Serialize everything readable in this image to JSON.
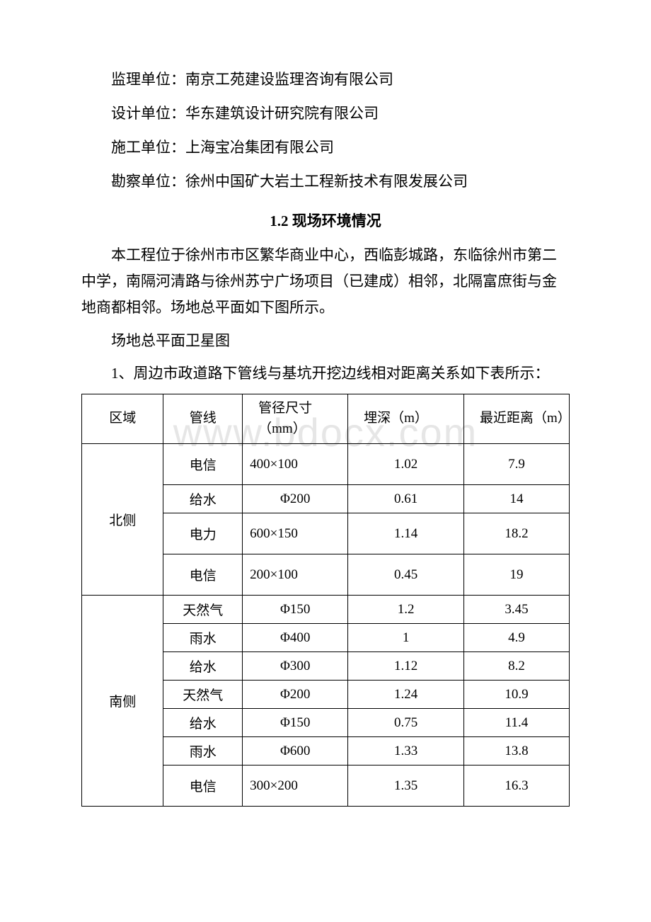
{
  "info": {
    "supervisor": "监理单位：南京工苑建设监理咨询有限公司",
    "designer": "设计单位：华东建筑设计研究院有限公司",
    "constructor": "施工单位：上海宝冶集团有限公司",
    "surveyor": "勘察单位：徐州中国矿大岩土工程新技术有限发展公司"
  },
  "section_title": "1.2 现场环境情况",
  "paragraphs": {
    "p1": "本工程位于徐州市市区繁华商业中心，西临彭城路，东临徐州市第二中学，南隔河清路与徐州苏宁广场项目（已建成）相邻，北隔富庶街与金地商都相邻。场地总平面如下图所示。",
    "p2": "场地总平面卫星图",
    "p3": "1、周边市政道路下管线与基坑开挖边线相对距离关系如下表所示："
  },
  "watermark": "www.bdocx.com",
  "table": {
    "headers": {
      "region": "区域",
      "pipe": "管线",
      "diameter": "管径尺寸（mm）",
      "depth": "埋深（m）",
      "distance": "最近距离（m）"
    },
    "regions": [
      {
        "name": "北侧",
        "rows": [
          {
            "pipe": "电信",
            "diameter": "400×100",
            "diameter_align": "left",
            "depth": "1.02",
            "distance": "7.9",
            "tall": true
          },
          {
            "pipe": "给水",
            "diameter": "Φ200",
            "diameter_align": "center",
            "depth": "0.61",
            "distance": "14",
            "tall": false
          },
          {
            "pipe": "电力",
            "diameter": "600×150",
            "diameter_align": "left",
            "depth": "1.14",
            "distance": "18.2",
            "tall": true
          },
          {
            "pipe": "电信",
            "diameter": "200×100",
            "diameter_align": "left",
            "depth": "0.45",
            "distance": "19",
            "tall": true
          }
        ]
      },
      {
        "name": "南侧",
        "rows": [
          {
            "pipe": "天然气",
            "diameter": "Φ150",
            "diameter_align": "center",
            "depth": "1.2",
            "distance": "3.45",
            "tall": false
          },
          {
            "pipe": "雨水",
            "diameter": "Φ400",
            "diameter_align": "center",
            "depth": "1",
            "distance": "4.9",
            "tall": false
          },
          {
            "pipe": "给水",
            "diameter": "Φ300",
            "diameter_align": "center",
            "depth": "1.12",
            "distance": "8.2",
            "tall": false
          },
          {
            "pipe": "天然气",
            "diameter": "Φ200",
            "diameter_align": "center",
            "depth": "1.24",
            "distance": "10.9",
            "tall": false
          },
          {
            "pipe": "给水",
            "diameter": "Φ150",
            "diameter_align": "center",
            "depth": "0.75",
            "distance": "11.4",
            "tall": false
          },
          {
            "pipe": "雨水",
            "diameter": "Φ600",
            "diameter_align": "center",
            "depth": "1.33",
            "distance": "13.8",
            "tall": false
          },
          {
            "pipe": "电信",
            "diameter": "300×200",
            "diameter_align": "left",
            "depth": "1.35",
            "distance": "16.3",
            "tall": true
          }
        ]
      }
    ]
  }
}
